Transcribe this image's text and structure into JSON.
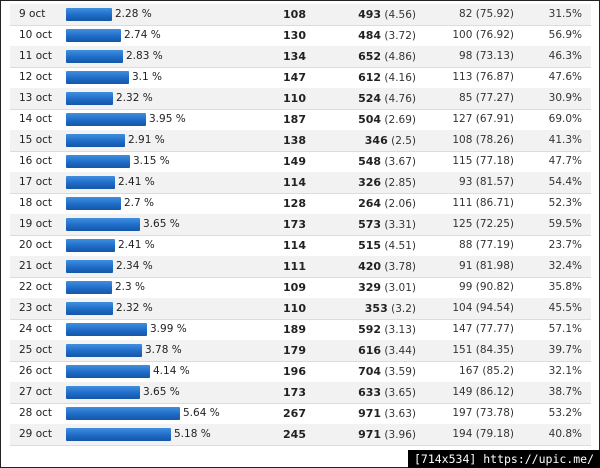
{
  "rows": [
    {
      "date": "9 oct",
      "pct": "2.28 %",
      "pct_value": 2.28,
      "a": "108",
      "b": "493",
      "b_sub": "(4.56)",
      "c": "82 (75.92)",
      "d": "31.5%"
    },
    {
      "date": "10 oct",
      "pct": "2.74 %",
      "pct_value": 2.74,
      "a": "130",
      "b": "484",
      "b_sub": "(3.72)",
      "c": "100 (76.92)",
      "d": "56.9%"
    },
    {
      "date": "11 oct",
      "pct": "2.83 %",
      "pct_value": 2.83,
      "a": "134",
      "b": "652",
      "b_sub": "(4.86)",
      "c": "98 (73.13)",
      "d": "46.3%"
    },
    {
      "date": "12 oct",
      "pct": "3.1 %",
      "pct_value": 3.1,
      "a": "147",
      "b": "612",
      "b_sub": "(4.16)",
      "c": "113 (76.87)",
      "d": "47.6%"
    },
    {
      "date": "13 oct",
      "pct": "2.32 %",
      "pct_value": 2.32,
      "a": "110",
      "b": "524",
      "b_sub": "(4.76)",
      "c": "85 (77.27)",
      "d": "30.9%"
    },
    {
      "date": "14 oct",
      "pct": "3.95 %",
      "pct_value": 3.95,
      "a": "187",
      "b": "504",
      "b_sub": "(2.69)",
      "c": "127 (67.91)",
      "d": "69.0%"
    },
    {
      "date": "15 oct",
      "pct": "2.91 %",
      "pct_value": 2.91,
      "a": "138",
      "b": "346",
      "b_sub": "(2.5)",
      "c": "108 (78.26)",
      "d": "41.3%"
    },
    {
      "date": "16 oct",
      "pct": "3.15 %",
      "pct_value": 3.15,
      "a": "149",
      "b": "548",
      "b_sub": "(3.67)",
      "c": "115 (77.18)",
      "d": "47.7%"
    },
    {
      "date": "17 oct",
      "pct": "2.41 %",
      "pct_value": 2.41,
      "a": "114",
      "b": "326",
      "b_sub": "(2.85)",
      "c": "93 (81.57)",
      "d": "54.4%"
    },
    {
      "date": "18 oct",
      "pct": "2.7 %",
      "pct_value": 2.7,
      "a": "128",
      "b": "264",
      "b_sub": "(2.06)",
      "c": "111 (86.71)",
      "d": "52.3%"
    },
    {
      "date": "19 oct",
      "pct": "3.65 %",
      "pct_value": 3.65,
      "a": "173",
      "b": "573",
      "b_sub": "(3.31)",
      "c": "125 (72.25)",
      "d": "59.5%"
    },
    {
      "date": "20 oct",
      "pct": "2.41 %",
      "pct_value": 2.41,
      "a": "114",
      "b": "515",
      "b_sub": "(4.51)",
      "c": "88 (77.19)",
      "d": "23.7%"
    },
    {
      "date": "21 oct",
      "pct": "2.34 %",
      "pct_value": 2.34,
      "a": "111",
      "b": "420",
      "b_sub": "(3.78)",
      "c": "91 (81.98)",
      "d": "32.4%"
    },
    {
      "date": "22 oct",
      "pct": "2.3 %",
      "pct_value": 2.3,
      "a": "109",
      "b": "329",
      "b_sub": "(3.01)",
      "c": "99 (90.82)",
      "d": "35.8%"
    },
    {
      "date": "23 oct",
      "pct": "2.32 %",
      "pct_value": 2.32,
      "a": "110",
      "b": "353",
      "b_sub": "(3.2)",
      "c": "104 (94.54)",
      "d": "45.5%"
    },
    {
      "date": "24 oct",
      "pct": "3.99 %",
      "pct_value": 3.99,
      "a": "189",
      "b": "592",
      "b_sub": "(3.13)",
      "c": "147 (77.77)",
      "d": "57.1%"
    },
    {
      "date": "25 oct",
      "pct": "3.78 %",
      "pct_value": 3.78,
      "a": "179",
      "b": "616",
      "b_sub": "(3.44)",
      "c": "151 (84.35)",
      "d": "39.7%"
    },
    {
      "date": "26 oct",
      "pct": "4.14 %",
      "pct_value": 4.14,
      "a": "196",
      "b": "704",
      "b_sub": "(3.59)",
      "c": "167 (85.2)",
      "d": "32.1%"
    },
    {
      "date": "27 oct",
      "pct": "3.65 %",
      "pct_value": 3.65,
      "a": "173",
      "b": "633",
      "b_sub": "(3.65)",
      "c": "149 (86.12)",
      "d": "38.7%"
    },
    {
      "date": "28 oct",
      "pct": "5.64 %",
      "pct_value": 5.64,
      "a": "267",
      "b": "971",
      "b_sub": "(3.63)",
      "c": "197 (73.78)",
      "d": "53.2%"
    },
    {
      "date": "29 oct",
      "pct": "5.18 %",
      "pct_value": 5.18,
      "a": "245",
      "b": "971",
      "b_sub": "(3.96)",
      "c": "194 (79.18)",
      "d": "40.8%"
    }
  ],
  "watermark": "[714x534] https://upic.me/",
  "colors": {
    "bar": "#1f6cc7",
    "row_alt": "#f2f2f2",
    "grid": "#dcdcdc"
  }
}
